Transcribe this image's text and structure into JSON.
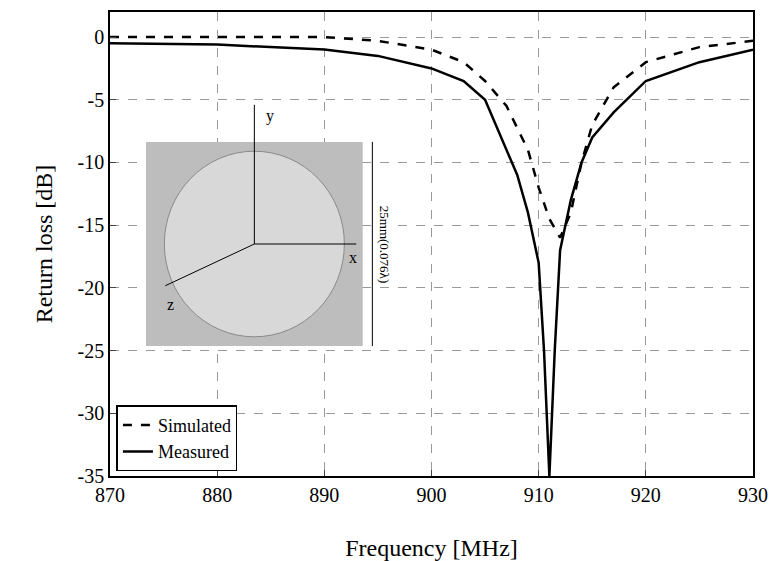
{
  "chart_data": {
    "type": "line",
    "x_label": "Frequency [MHz]",
    "y_label": "Return loss [dB]",
    "xlim": [
      870,
      930
    ],
    "xticks": [
      870,
      880,
      890,
      900,
      910,
      920,
      930
    ],
    "ylim": [
      -35,
      2
    ],
    "yticks": [
      -35,
      -30,
      -25,
      -20,
      -15,
      -10,
      -5,
      0
    ],
    "grid": true,
    "legend": "lower left",
    "series": [
      {
        "name": "Simulated",
        "color": "#000000",
        "line_style": "dashed",
        "x": [
          870,
          880,
          890,
          895,
          900,
          903,
          905,
          907,
          909,
          910,
          911,
          912,
          913,
          914,
          915,
          917,
          920,
          925,
          930
        ],
        "values": [
          0,
          0,
          0,
          -0.3,
          -1,
          -2,
          -3.5,
          -5.5,
          -9,
          -12,
          -14.5,
          -16,
          -14,
          -10,
          -7,
          -4,
          -2,
          -0.8,
          -0.3
        ]
      },
      {
        "name": "Measured",
        "color": "#000000",
        "line_style": "solid",
        "x": [
          870,
          880,
          890,
          895,
          900,
          903,
          905,
          907,
          908,
          909,
          910,
          910.5,
          911,
          911.5,
          912,
          913,
          914,
          915,
          917,
          920,
          925,
          930
        ],
        "values": [
          -0.5,
          -0.6,
          -1,
          -1.5,
          -2.5,
          -3.5,
          -5,
          -9,
          -11,
          -14,
          -18,
          -25,
          -35,
          -25,
          -17,
          -13,
          -10,
          -8,
          -6,
          -3.5,
          -2,
          -1
        ]
      }
    ],
    "annotations": [
      "y",
      "x",
      "z",
      "25mm(0.076λ)"
    ]
  }
}
